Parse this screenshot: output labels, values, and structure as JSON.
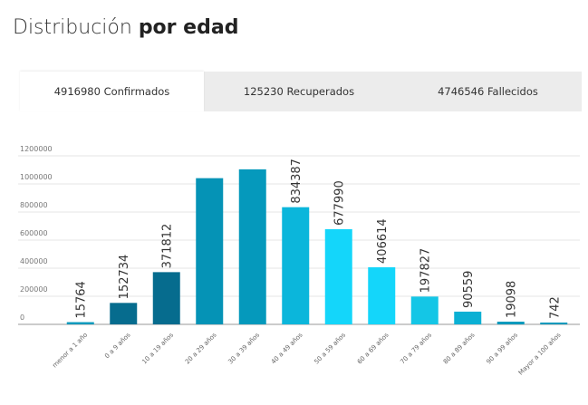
{
  "header": {
    "title_prefix": "Distribución ",
    "title_bold": "por edad"
  },
  "tabs": [
    {
      "label": "4916980 Confirmados",
      "active": true
    },
    {
      "label": "125230 Recuperados",
      "active": false
    },
    {
      "label": "4746546 Fallecidos",
      "active": false
    }
  ],
  "chart_data": {
    "type": "bar",
    "categories": [
      "menor a 1 año",
      "0 a 9 años",
      "10 a 19 años",
      "20 a 29 años",
      "30 a 39 años",
      "40 a 49 años",
      "50 a 59 años",
      "60 a 69 años",
      "70 a 79 años",
      "80 a 89 años",
      "90 a 99 años",
      "Mayor a 100 años"
    ],
    "values": [
      15764,
      152734,
      371812,
      1041000,
      1104000,
      834387,
      677990,
      406614,
      197827,
      90559,
      19098,
      742
    ],
    "data_labels": [
      "15764",
      "152734",
      "371812",
      "",
      "",
      "834387",
      "677990",
      "406614",
      "197827",
      "90559",
      "19098",
      "742"
    ],
    "yticks": [
      "0",
      "200000",
      "400000",
      "600000",
      "800000",
      "1000000",
      "1200000"
    ],
    "ylim": [
      0,
      1200000
    ],
    "colors": [
      "#0599bc",
      "#066c8e",
      "#066c8e",
      "#0593b6",
      "#0599bc",
      "#0bb6db",
      "#14d6fa",
      "#14d6fa",
      "#14c6e6",
      "#0bb0d4",
      "#0599bc",
      "#0599bc"
    ]
  }
}
